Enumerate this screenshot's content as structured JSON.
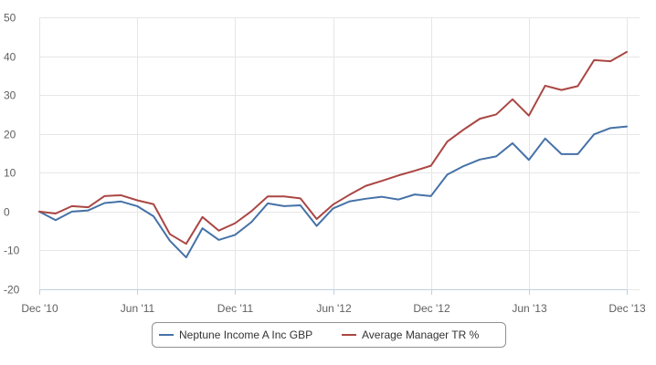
{
  "chart_data": {
    "type": "line",
    "title": "",
    "xlabel": "",
    "ylabel": "",
    "ylim": [
      -20,
      50
    ],
    "y_ticks": [
      -20,
      -10,
      0,
      10,
      20,
      30,
      40,
      50
    ],
    "x_tick_labels": [
      "Dec '10",
      "Jun '11",
      "Dec '11",
      "Jun '12",
      "Dec '12",
      "Jun '13",
      "Dec '13"
    ],
    "x_tick_months": [
      0,
      6,
      12,
      18,
      24,
      30,
      36
    ],
    "x_months_range": [
      0,
      36
    ],
    "grid": true,
    "legend_position": "bottom",
    "series": [
      {
        "name": "Neptune Income A Inc GBP",
        "color": "#4572a7",
        "values": [
          0,
          -2.2,
          0,
          0.3,
          2.2,
          2.6,
          1.4,
          -1.2,
          -7.5,
          -11.8,
          -4.3,
          -7.3,
          -6,
          -2.7,
          2.1,
          1.4,
          1.6,
          -3.7,
          0.8,
          2.6,
          3.3,
          3.8,
          3.1,
          4.4,
          4,
          9.5,
          11.7,
          13.4,
          14.2,
          17.6,
          13.3,
          18.8,
          14.8,
          14.8,
          19.9,
          21.5,
          21.9
        ]
      },
      {
        "name": "Average Manager TR %",
        "color": "#aa4643",
        "values": [
          0,
          -0.5,
          1.4,
          1.1,
          4,
          4.2,
          2.9,
          1.9,
          -5.8,
          -8.3,
          -1.4,
          -4.9,
          -3,
          0.1,
          3.9,
          3.9,
          3.4,
          -1.9,
          1.8,
          4.3,
          6.6,
          7.9,
          9.3,
          10.5,
          11.8,
          18,
          21.1,
          23.9,
          25,
          28.9,
          24.7,
          32.4,
          31.3,
          32.3,
          39,
          38.7,
          41.1
        ]
      }
    ]
  }
}
